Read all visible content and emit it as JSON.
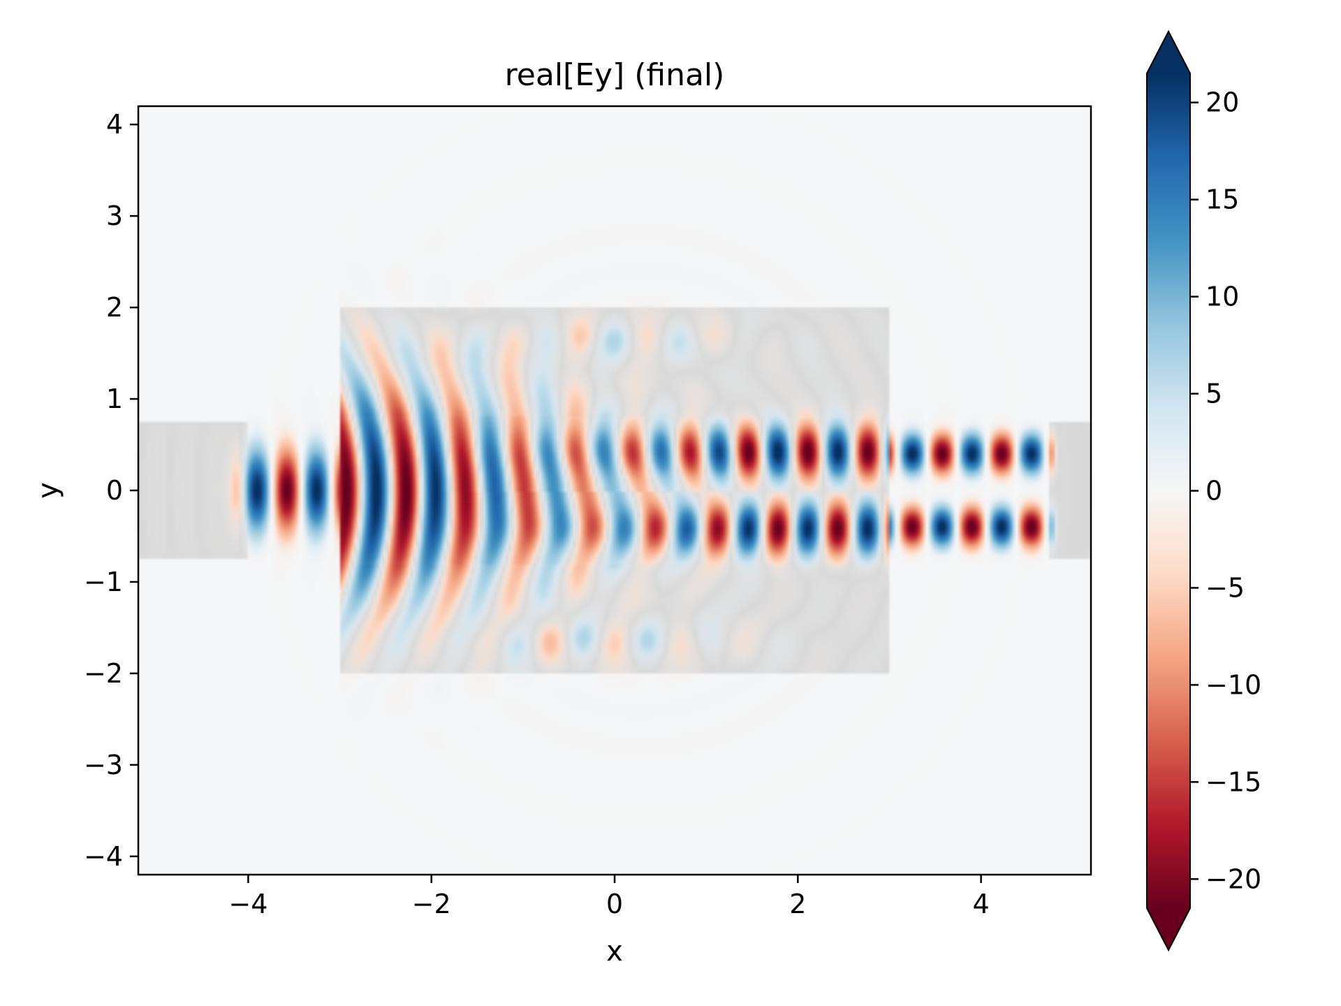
{
  "chart_data": {
    "type": "heatmap",
    "title": "real[Ey] (final)",
    "xlabel": "x",
    "ylabel": "y",
    "xlim": [
      -5.2,
      5.2
    ],
    "ylim": [
      -4.2,
      4.2
    ],
    "xticks": [
      {
        "value": -4,
        "label": "−4"
      },
      {
        "value": -2,
        "label": "−2"
      },
      {
        "value": 0,
        "label": "0"
      },
      {
        "value": 2,
        "label": "2"
      },
      {
        "value": 4,
        "label": "4"
      }
    ],
    "yticks": [
      {
        "value": -4,
        "label": "−4"
      },
      {
        "value": -3,
        "label": "−3"
      },
      {
        "value": -2,
        "label": "−2"
      },
      {
        "value": -1,
        "label": "−1"
      },
      {
        "value": 0,
        "label": "0"
      },
      {
        "value": 1,
        "label": "1"
      },
      {
        "value": 2,
        "label": "2"
      },
      {
        "value": 3,
        "label": "3"
      },
      {
        "value": 4,
        "label": "4"
      }
    ],
    "colorbar": {
      "colormap": "RdBu",
      "range": [
        -21.5,
        21.5
      ],
      "extend": "both",
      "ticks": [
        {
          "value": 20,
          "label": "20"
        },
        {
          "value": 15,
          "label": "15"
        },
        {
          "value": 10,
          "label": "10"
        },
        {
          "value": 5,
          "label": "5"
        },
        {
          "value": 0,
          "label": "0"
        },
        {
          "value": -5,
          "label": "−5"
        },
        {
          "value": -10,
          "label": "−10"
        },
        {
          "value": -15,
          "label": "−15"
        },
        {
          "value": -20,
          "label": "−20"
        }
      ],
      "colors": [
        "#67001f",
        "#b2182b",
        "#d6604d",
        "#f4a582",
        "#fddbc7",
        "#f7f7f7",
        "#d1e5f0",
        "#92c5de",
        "#4393c3",
        "#2166ac",
        "#053061"
      ]
    },
    "structure": {
      "color": "#d9d9d9",
      "input_waveguide": {
        "x": [
          -5.2,
          -4.0
        ],
        "y": [
          -0.75,
          0.75
        ]
      },
      "output_waveguide": {
        "x": [
          4.75,
          5.2
        ],
        "y": [
          -0.75,
          0.75
        ]
      },
      "design_region": {
        "x": [
          -3.0,
          3.0
        ],
        "y": [
          -2.0,
          2.0
        ]
      }
    },
    "field_summary": {
      "input_wavelength": 0.65,
      "input_x_start": -4.0,
      "output_x_end": 4.75,
      "output_mode_peak_y": 0.4,
      "peak_amplitude": 22
    }
  }
}
